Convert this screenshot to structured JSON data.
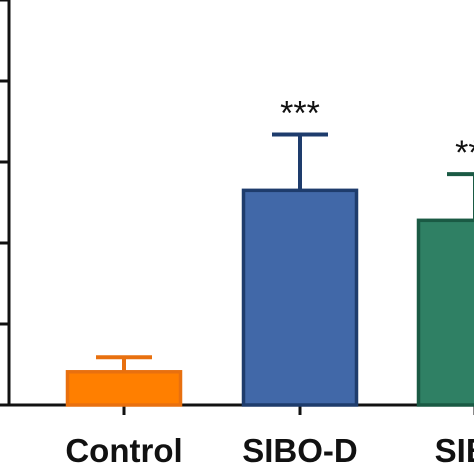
{
  "chart_data": {
    "type": "bar",
    "title": "",
    "xlabel": "",
    "ylabel": "",
    "categories": [
      "Control",
      "SIBO-D",
      "SIBO"
    ],
    "values": [
      0.41,
      2.65,
      2.28
    ],
    "errors": [
      0.18,
      0.69,
      0.57
    ],
    "significance": [
      "",
      "***",
      "***"
    ],
    "ylim": [
      0,
      5
    ],
    "yticks": [
      0,
      1,
      2,
      3,
      4,
      5
    ],
    "grid": false,
    "colors": {
      "fill": [
        "#ff7f00",
        "#4168a8",
        "#2f8064"
      ],
      "stroke": [
        "#e8700f",
        "#1e3c6c",
        "#1a5a44"
      ],
      "axis": "#111111"
    }
  }
}
